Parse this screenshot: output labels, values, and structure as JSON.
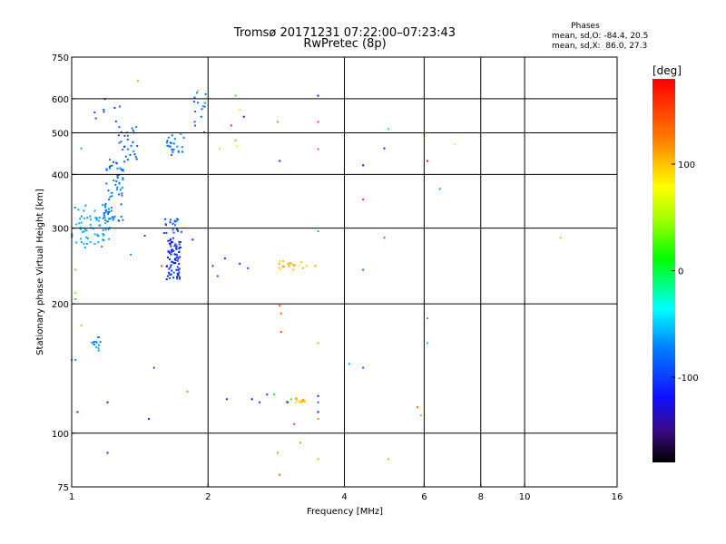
{
  "chart_data": {
    "type": "scatter",
    "title": "Tromsø 20171231 07:22:00–07:23:43",
    "subtitle": "RwPretec (8p)",
    "stats": {
      "header": "Phases",
      "line_o": "mean, sd,O: -84.4, 20.5",
      "line_x": "mean, sd,X:  86.0, 27.3"
    },
    "xlabel": "Frequency [MHz]",
    "ylabel": "Stationary phase Virtual Height [km]",
    "x_scale": "log",
    "y_scale": "log",
    "xlim": [
      1,
      16
    ],
    "ylim": [
      75,
      750
    ],
    "x_ticks": [
      {
        "value": 1,
        "label": "1"
      },
      {
        "value": 2,
        "label": "2"
      },
      {
        "value": 4,
        "label": "4"
      },
      {
        "value": 6,
        "label": "6"
      },
      {
        "value": 8,
        "label": "8"
      },
      {
        "value": 10,
        "label": "10"
      },
      {
        "value": 16,
        "label": "16"
      }
    ],
    "x_grid": [
      2,
      4,
      6,
      8,
      10
    ],
    "y_ticks": [
      {
        "value": 75,
        "label": "75"
      },
      {
        "value": 100,
        "label": "100"
      },
      {
        "value": 200,
        "label": "200"
      },
      {
        "value": 300,
        "label": "300"
      },
      {
        "value": 400,
        "label": "400"
      },
      {
        "value": 500,
        "label": "500"
      },
      {
        "value": 600,
        "label": "600"
      },
      {
        "value": 750,
        "label": "750"
      }
    ],
    "y_grid": [
      100,
      200,
      300,
      400,
      500,
      600
    ],
    "grid": true,
    "colorbar": {
      "label": "[deg]",
      "range": [
        -180,
        180
      ],
      "ticks": [
        {
          "value": 100,
          "label": "100"
        },
        {
          "value": 0,
          "label": "0"
        },
        {
          "value": -100,
          "label": "-100"
        }
      ]
    },
    "clusters": [
      {
        "x": [
          1.0,
          1.22
        ],
        "y": [
          270,
          340
        ],
        "phase": [
          -70,
          -55
        ],
        "n": 70
      },
      {
        "x": [
          1.18,
          1.3
        ],
        "y": [
          310,
          440
        ],
        "phase": [
          -90,
          -65
        ],
        "n": 65
      },
      {
        "x": [
          1.27,
          1.4
        ],
        "y": [
          420,
          520
        ],
        "phase": [
          -100,
          -70
        ],
        "n": 28
      },
      {
        "x": [
          1.12,
          1.28
        ],
        "y": [
          530,
          610
        ],
        "phase": [
          -100,
          -80
        ],
        "n": 8
      },
      {
        "x": [
          1.62,
          1.74
        ],
        "y": [
          228,
          285
        ],
        "phase": [
          -130,
          -95
        ],
        "n": 75
      },
      {
        "x": [
          1.6,
          1.76
        ],
        "y": [
          292,
          318
        ],
        "phase": [
          -100,
          -70
        ],
        "n": 20
      },
      {
        "x": [
          1.62,
          1.78
        ],
        "y": [
          440,
          500
        ],
        "phase": [
          -95,
          -70
        ],
        "n": 22
      },
      {
        "x": [
          1.86,
          1.98
        ],
        "y": [
          500,
          620
        ],
        "phase": [
          -90,
          -60
        ],
        "n": 14
      },
      {
        "x": [
          1.1,
          1.16
        ],
        "y": [
          155,
          168
        ],
        "phase": [
          -75,
          -55
        ],
        "n": 14
      },
      {
        "x": [
          2.85,
          3.25
        ],
        "y": [
          240,
          252
        ],
        "phase": [
          80,
          120
        ],
        "n": 18
      },
      {
        "x": [
          2.95,
          3.3
        ],
        "y": [
          117,
          121
        ],
        "phase": [
          90,
          120
        ],
        "n": 14
      }
    ],
    "points": [
      {
        "x": 1.0,
        "y": 148,
        "phase": -55
      },
      {
        "x": 1.02,
        "y": 148,
        "phase": -70
      },
      {
        "x": 1.03,
        "y": 112,
        "phase": -100
      },
      {
        "x": 1.05,
        "y": 460,
        "phase": -60
      },
      {
        "x": 1.02,
        "y": 240,
        "phase": 30
      },
      {
        "x": 1.02,
        "y": 212,
        "phase": 40
      },
      {
        "x": 1.02,
        "y": 205,
        "phase": 10
      },
      {
        "x": 1.05,
        "y": 178,
        "phase": 40
      },
      {
        "x": 1.2,
        "y": 90,
        "phase": -110
      },
      {
        "x": 1.2,
        "y": 118,
        "phase": -120
      },
      {
        "x": 1.35,
        "y": 260,
        "phase": -60
      },
      {
        "x": 1.4,
        "y": 660,
        "phase": 110
      },
      {
        "x": 1.45,
        "y": 288,
        "phase": -100
      },
      {
        "x": 1.48,
        "y": 108,
        "phase": -110
      },
      {
        "x": 1.52,
        "y": 142,
        "phase": -90
      },
      {
        "x": 1.58,
        "y": 245,
        "phase": 150
      },
      {
        "x": 1.8,
        "y": 125,
        "phase": 120
      },
      {
        "x": 1.85,
        "y": 282,
        "phase": -110
      },
      {
        "x": 1.9,
        "y": 625,
        "phase": 110
      },
      {
        "x": 2.05,
        "y": 245,
        "phase": -100
      },
      {
        "x": 2.1,
        "y": 232,
        "phase": -90
      },
      {
        "x": 2.12,
        "y": 460,
        "phase": 60
      },
      {
        "x": 2.18,
        "y": 255,
        "phase": -100
      },
      {
        "x": 2.2,
        "y": 120,
        "phase": -110
      },
      {
        "x": 2.25,
        "y": 520,
        "phase": 160
      },
      {
        "x": 2.3,
        "y": 480,
        "phase": 110
      },
      {
        "x": 2.32,
        "y": 465,
        "phase": 80
      },
      {
        "x": 2.35,
        "y": 565,
        "phase": 90
      },
      {
        "x": 2.35,
        "y": 248,
        "phase": -110
      },
      {
        "x": 2.4,
        "y": 545,
        "phase": -120
      },
      {
        "x": 2.45,
        "y": 242,
        "phase": -100
      },
      {
        "x": 2.3,
        "y": 610,
        "phase": 20
      },
      {
        "x": 2.5,
        "y": 120,
        "phase": -120
      },
      {
        "x": 2.6,
        "y": 118,
        "phase": -110
      },
      {
        "x": 2.7,
        "y": 123,
        "phase": -100
      },
      {
        "x": 2.8,
        "y": 123,
        "phase": 10
      },
      {
        "x": 2.85,
        "y": 530,
        "phase": 120
      },
      {
        "x": 2.88,
        "y": 430,
        "phase": -110
      },
      {
        "x": 2.88,
        "y": 198,
        "phase": 140
      },
      {
        "x": 2.9,
        "y": 190,
        "phase": 130
      },
      {
        "x": 2.9,
        "y": 172,
        "phase": 150
      },
      {
        "x": 2.85,
        "y": 90,
        "phase": 120
      },
      {
        "x": 2.88,
        "y": 80,
        "phase": 140
      },
      {
        "x": 3.0,
        "y": 118,
        "phase": -100
      },
      {
        "x": 3.05,
        "y": 120,
        "phase": 20
      },
      {
        "x": 3.1,
        "y": 105,
        "phase": 150
      },
      {
        "x": 3.2,
        "y": 95,
        "phase": 120
      },
      {
        "x": 3.3,
        "y": 245,
        "phase": 100
      },
      {
        "x": 3.45,
        "y": 245,
        "phase": 110
      },
      {
        "x": 3.5,
        "y": 610,
        "phase": -120
      },
      {
        "x": 3.5,
        "y": 530,
        "phase": 150
      },
      {
        "x": 3.5,
        "y": 458,
        "phase": 140
      },
      {
        "x": 3.5,
        "y": 295,
        "phase": -60
      },
      {
        "x": 3.5,
        "y": 162,
        "phase": 110
      },
      {
        "x": 3.5,
        "y": 122,
        "phase": -110
      },
      {
        "x": 3.5,
        "y": 118,
        "phase": -80
      },
      {
        "x": 3.5,
        "y": 112,
        "phase": -130
      },
      {
        "x": 3.5,
        "y": 108,
        "phase": 120
      },
      {
        "x": 3.5,
        "y": 87,
        "phase": 110
      },
      {
        "x": 4.1,
        "y": 145,
        "phase": -60
      },
      {
        "x": 4.4,
        "y": 142,
        "phase": -90
      },
      {
        "x": 4.4,
        "y": 420,
        "phase": -120
      },
      {
        "x": 4.4,
        "y": 350,
        "phase": 160
      },
      {
        "x": 4.4,
        "y": 240,
        "phase": -80
      },
      {
        "x": 4.9,
        "y": 460,
        "phase": -110
      },
      {
        "x": 4.9,
        "y": 285,
        "phase": 150
      },
      {
        "x": 5.0,
        "y": 510,
        "phase": -50
      },
      {
        "x": 5.0,
        "y": 87,
        "phase": 110
      },
      {
        "x": 5.8,
        "y": 115,
        "phase": 130
      },
      {
        "x": 5.9,
        "y": 110,
        "phase": 110
      },
      {
        "x": 6.0,
        "y": 495,
        "phase": 30
      },
      {
        "x": 6.1,
        "y": 430,
        "phase": 170
      },
      {
        "x": 6.1,
        "y": 185,
        "phase": -60
      },
      {
        "x": 6.1,
        "y": 162,
        "phase": -50
      },
      {
        "x": 6.5,
        "y": 370,
        "phase": -60
      },
      {
        "x": 7.0,
        "y": 470,
        "phase": 80
      },
      {
        "x": 12.0,
        "y": 285,
        "phase": 100
      }
    ]
  }
}
